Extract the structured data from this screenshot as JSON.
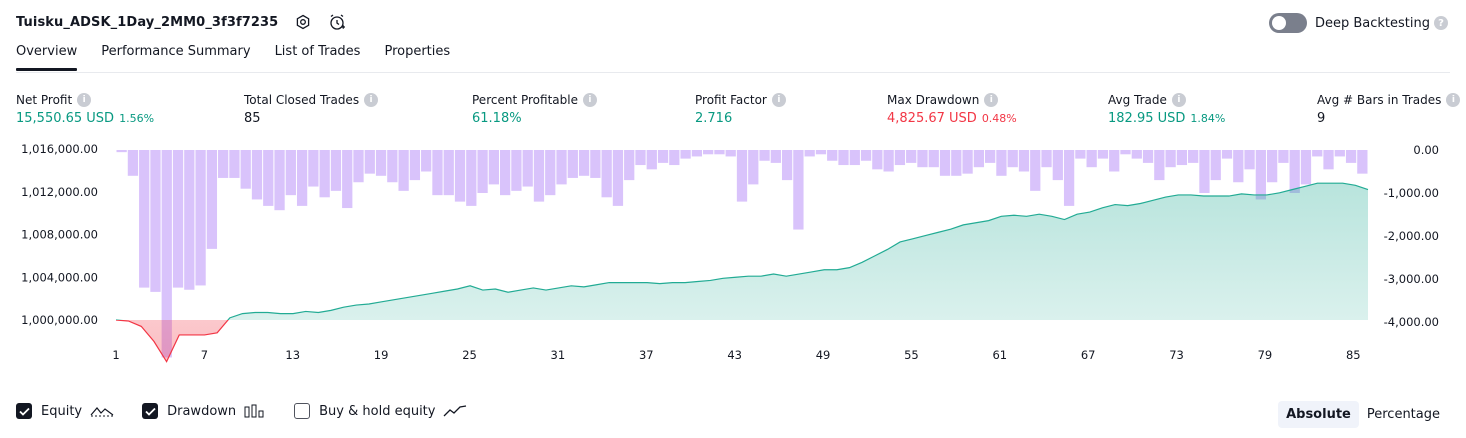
{
  "header": {
    "strategy_title": "Tuisku_ADSK_1Day_2MM0_3f3f7235",
    "deep_backtesting_label": "Deep Backtesting"
  },
  "tabs": [
    {
      "label": "Overview",
      "active": true
    },
    {
      "label": "Performance Summary",
      "active": false
    },
    {
      "label": "List of Trades",
      "active": false
    },
    {
      "label": "Properties",
      "active": false
    }
  ],
  "metrics": [
    {
      "label": "Net Profit",
      "value": "15,550.65 USD",
      "pct": "1.56%",
      "color": "green"
    },
    {
      "label": "Total Closed Trades",
      "value": "85",
      "pct": "",
      "color": "dark"
    },
    {
      "label": "Percent Profitable",
      "value": "61.18%",
      "pct": "",
      "color": "green"
    },
    {
      "label": "Profit Factor",
      "value": "2.716",
      "pct": "",
      "color": "green"
    },
    {
      "label": "Max Drawdown",
      "value": "4,825.67 USD",
      "pct": "0.48%",
      "color": "red"
    },
    {
      "label": "Avg Trade",
      "value": "182.95 USD",
      "pct": "1.84%",
      "color": "green"
    },
    {
      "label": "Avg # Bars in Trades",
      "value": "9",
      "pct": "",
      "color": "dark"
    }
  ],
  "legend": {
    "equity_label": "Equity",
    "drawdown_label": "Drawdown",
    "buyhold_label": "Buy & hold equity",
    "equity_checked": true,
    "drawdown_checked": true,
    "buyhold_checked": false
  },
  "mode": {
    "absolute_label": "Absolute",
    "percentage_label": "Percentage",
    "selected": "Absolute"
  },
  "chart_data": {
    "type": "line",
    "left_axis": {
      "ticks": [
        1016000,
        1012000,
        1008000,
        1004000,
        1000000
      ],
      "tick_labels": [
        "1,016,000.00",
        "1,012,000.00",
        "1,008,000.00",
        "1,004,000.00",
        "1,000,000.00"
      ]
    },
    "right_axis": {
      "ticks": [
        0,
        -1000,
        -2000,
        -3000,
        -4000
      ],
      "tick_labels": [
        "0.00",
        "-1,000.00",
        "-2,000.00",
        "-3,000.00",
        "-4,000.00"
      ]
    },
    "x_ticks": [
      1,
      7,
      13,
      19,
      25,
      31,
      37,
      43,
      49,
      55,
      61,
      67,
      73,
      79,
      85
    ],
    "x_range": [
      1,
      86
    ],
    "series": [
      {
        "name": "Equity",
        "kind": "area-line",
        "baseline": 1000000,
        "color_above": "#22ab94",
        "color_below": "#f23645",
        "values": [
          1000000,
          999900,
          999400,
          998000,
          996100,
          998600,
          998600,
          998600,
          998800,
          1000200,
          1000600,
          1000700,
          1000700,
          1000600,
          1000600,
          1000800,
          1000700,
          1000900,
          1001200,
          1001400,
          1001500,
          1001700,
          1001900,
          1002100,
          1002300,
          1002500,
          1002700,
          1002900,
          1003200,
          1002800,
          1002900,
          1002600,
          1002800,
          1003000,
          1002800,
          1003000,
          1003200,
          1003100,
          1003300,
          1003500,
          1003500,
          1003500,
          1003500,
          1003400,
          1003500,
          1003500,
          1003600,
          1003700,
          1003900,
          1004000,
          1004100,
          1004100,
          1004300,
          1004100,
          1004300,
          1004500,
          1004700,
          1004700,
          1004900,
          1005400,
          1006000,
          1006600,
          1007300,
          1007600,
          1007900,
          1008200,
          1008500,
          1008900,
          1009100,
          1009300,
          1009700,
          1009800,
          1009700,
          1009900,
          1009700,
          1009400,
          1009900,
          1010100,
          1010500,
          1010800,
          1010700,
          1010900,
          1011200,
          1011500,
          1011700,
          1011700,
          1011600,
          1011600,
          1011600,
          1011800,
          1011700,
          1011700,
          1011900,
          1012200,
          1012500,
          1012800,
          1012800,
          1012800,
          1012600,
          1012200
        ],
        "values_note_omit": true
      },
      {
        "name": "Drawdown",
        "kind": "bar",
        "color": "#d2b9fa",
        "values": [
          -50,
          -600,
          -3200,
          -3300,
          -4825,
          -3200,
          -3250,
          -3150,
          -2300,
          -650,
          -650,
          -900,
          -1150,
          -1300,
          -1400,
          -1050,
          -1300,
          -850,
          -1100,
          -950,
          -1350,
          -750,
          -550,
          -600,
          -750,
          -950,
          -700,
          -500,
          -1050,
          -1050,
          -1200,
          -1300,
          -1000,
          -800,
          -1050,
          -950,
          -850,
          -1200,
          -1050,
          -800,
          -650,
          -600,
          -650,
          -1100,
          -1300,
          -700,
          -350,
          -450,
          -300,
          -350,
          -200,
          -150,
          -100,
          -100,
          -150,
          -1200,
          -800,
          -250,
          -300,
          -700,
          -1850,
          -150,
          -100,
          -250,
          -350,
          -350,
          -250,
          -450,
          -500,
          -350,
          -300,
          -400,
          -400,
          -600,
          -600,
          -550,
          -400,
          -300,
          -600,
          -400,
          -500,
          -950,
          -400,
          -700,
          -1300,
          -200,
          -400,
          -200,
          -500,
          -100,
          -200,
          -300,
          -700,
          -400,
          -350,
          -300,
          -1000,
          -700,
          -200,
          -750,
          -450,
          -1150,
          -750,
          -300,
          -1000,
          -800,
          -150,
          -450,
          -150,
          -300,
          -550
        ]
      }
    ]
  }
}
